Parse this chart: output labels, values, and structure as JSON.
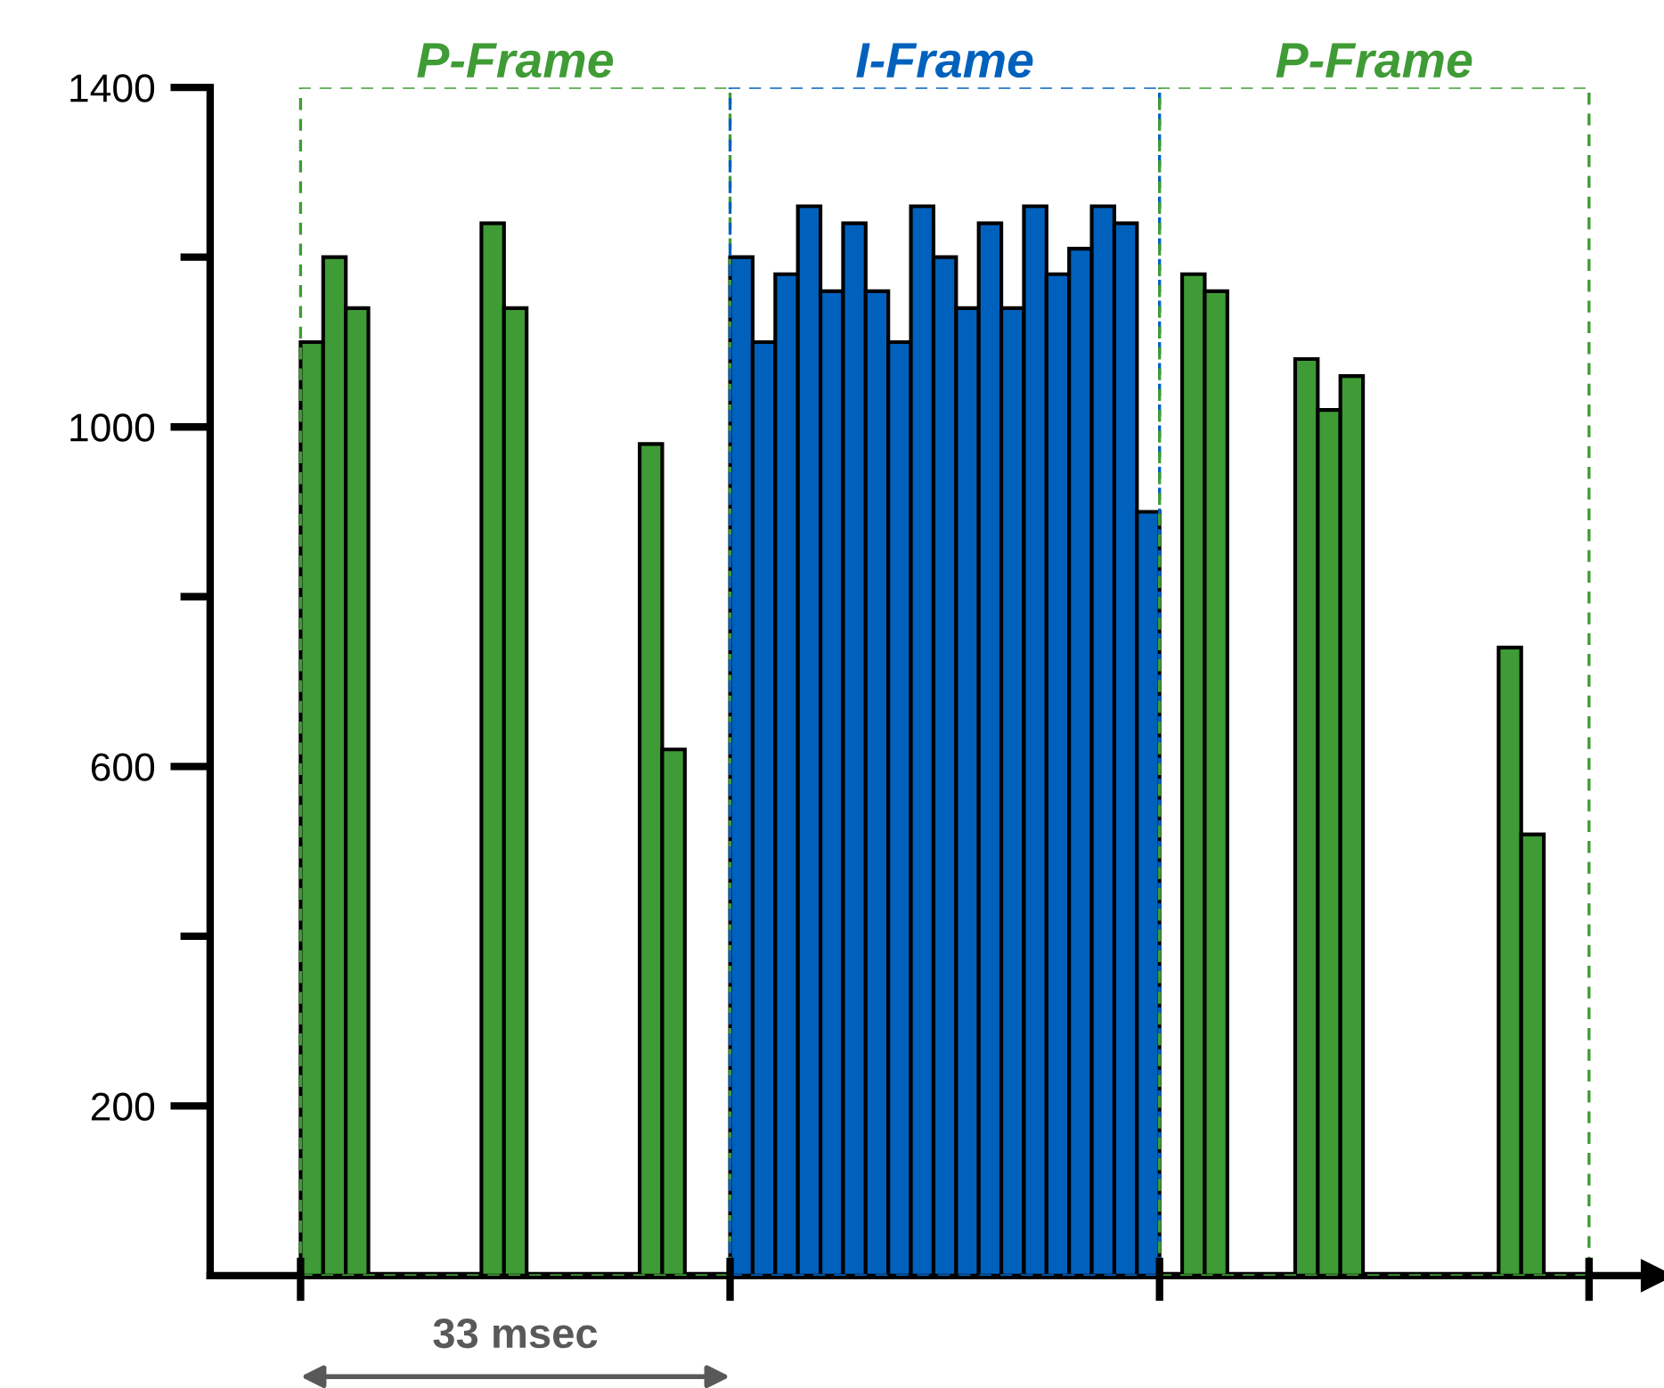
{
  "chart_data": {
    "type": "bar",
    "categories": [
      null,
      null,
      null,
      null,
      null,
      null,
      null,
      null,
      null,
      null,
      null,
      null,
      null,
      null,
      null,
      null,
      null,
      null,
      null,
      null,
      null,
      null,
      null,
      null,
      null,
      null,
      null,
      null,
      null,
      null,
      null,
      null,
      null,
      null,
      null,
      null,
      null,
      null,
      null,
      null,
      null,
      null,
      null,
      null,
      null,
      null,
      null,
      null,
      null,
      null,
      null,
      null,
      null,
      null,
      null,
      null,
      null,
      null,
      null,
      null,
      null,
      null,
      null,
      null
    ],
    "values": [
      null,
      null,
      null,
      null,
      1100,
      1200,
      1140,
      null,
      null,
      null,
      null,
      null,
      1240,
      1140,
      null,
      null,
      null,
      null,
      null,
      980,
      620,
      null,
      null,
      1200,
      1100,
      1180,
      1260,
      1160,
      1240,
      1160,
      1100,
      1260,
      1200,
      1140,
      1240,
      1140,
      1260,
      1180,
      1210,
      1260,
      1240,
      900,
      null,
      1180,
      1160,
      null,
      null,
      null,
      1080,
      1020,
      1060,
      null,
      null,
      null,
      null,
      null,
      null,
      740,
      520,
      null,
      null,
      null,
      null,
      null
    ],
    "colors": [
      null,
      null,
      null,
      null,
      "#3f9b35",
      "#3f9b35",
      "#3f9b35",
      "#3f9b35",
      "#3f9b35",
      "#3f9b35",
      "#3f9b35",
      "#3f9b35",
      "#3f9b35",
      "#3f9b35",
      "#3f9b35",
      "#3f9b35",
      "#3f9b35",
      "#3f9b35",
      "#3f9b35",
      "#3f9b35",
      "#3f9b35",
      "#3f9b35",
      "#3f9b35",
      "#0061bd",
      "#0061bd",
      "#0061bd",
      "#0061bd",
      "#0061bd",
      "#0061bd",
      "#0061bd",
      "#0061bd",
      "#0061bd",
      "#0061bd",
      "#0061bd",
      "#0061bd",
      "#0061bd",
      "#0061bd",
      "#0061bd",
      "#0061bd",
      "#0061bd",
      "#0061bd",
      "#0061bd",
      "#3f9b35",
      "#3f9b35",
      "#3f9b35",
      "#3f9b35",
      "#3f9b35",
      "#3f9b35",
      "#3f9b35",
      "#3f9b35",
      "#3f9b35",
      "#3f9b35",
      "#3f9b35",
      "#3f9b35",
      "#3f9b35",
      "#3f9b35",
      "#3f9b35",
      "#3f9b35",
      "#3f9b35",
      "#3f9b35",
      "#3f9b35",
      null,
      null,
      null
    ],
    "annotations": [
      "P-Frame",
      "I-Frame",
      "P-Frame",
      "33 msec"
    ],
    "ylim": [
      0,
      1400
    ],
    "yticks": [
      200,
      600,
      1000,
      1400
    ],
    "grid": false,
    "legend": false
  }
}
